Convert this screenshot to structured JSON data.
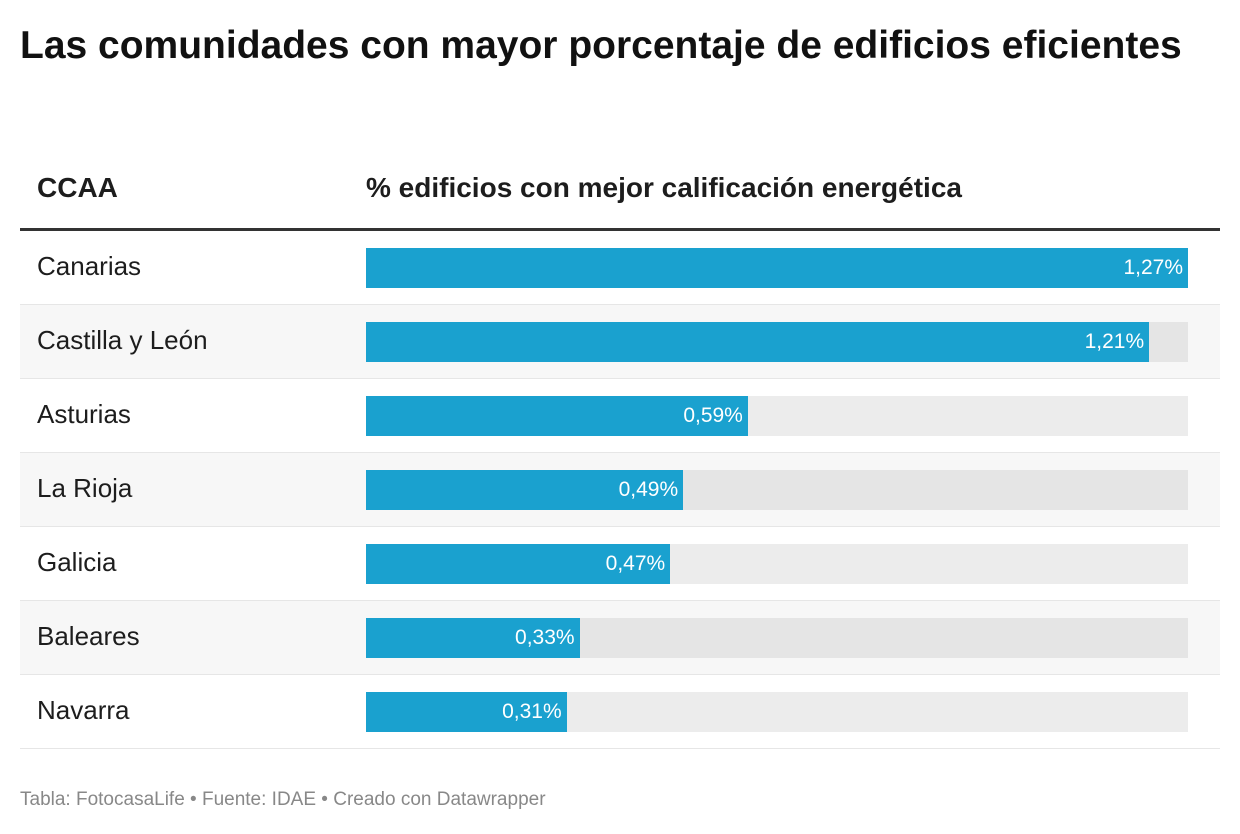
{
  "title": "Las comunidades con mayor porcentaje de edificios eficientes",
  "footer": "Tabla: FotocasaLife • Fuente: IDAE • Creado con Datawrapper",
  "colors": {
    "bar": "#1aa1cf",
    "track": "#ececec"
  },
  "chart_data": {
    "type": "table",
    "columns": [
      "CCAA",
      "% edificios con mejor calificación energética"
    ],
    "categories": [
      "Canarias",
      "Castilla y León",
      "Asturias",
      "La Rioja",
      "Galicia",
      "Baleares",
      "Navarra"
    ],
    "values": [
      1.27,
      1.21,
      0.59,
      0.49,
      0.47,
      0.33,
      0.31
    ],
    "labels": [
      "1,27%",
      "1,21%",
      "0,59%",
      "0,49%",
      "0,47%",
      "0,33%",
      "0,31%"
    ],
    "xlim": [
      0,
      1.27
    ]
  }
}
